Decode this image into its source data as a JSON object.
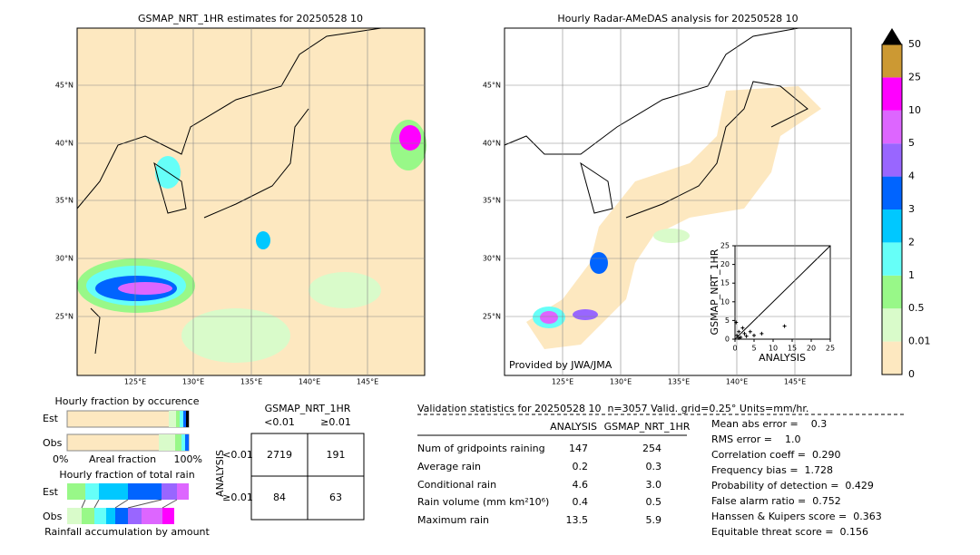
{
  "left_map": {
    "title": "GSMAP_NRT_1HR estimates for 20250528 10",
    "lat_labels": [
      "45°N",
      "40°N",
      "35°N",
      "30°N",
      "25°N"
    ],
    "lon_labels": [
      "125°E",
      "130°E",
      "135°E",
      "140°E",
      "145°E"
    ]
  },
  "right_map": {
    "title": "Hourly Radar-AMeDAS analysis for 20250528 10",
    "lat_labels": [
      "45°N",
      "40°N",
      "35°N",
      "30°N",
      "25°N"
    ],
    "lon_labels": [
      "125°E",
      "130°E",
      "135°E",
      "140°E",
      "145°E"
    ],
    "credit": "Provided by JWA/JMA"
  },
  "scatter": {
    "xlabel": "ANALYSIS",
    "ylabel": "GSMAP_NRT_1HR",
    "xticks": [
      0,
      5,
      10,
      15,
      20,
      25
    ],
    "yticks": [
      0,
      5,
      10,
      15,
      20,
      25
    ],
    "points": [
      [
        0.5,
        1
      ],
      [
        1,
        2
      ],
      [
        1.5,
        0.5
      ],
      [
        2,
        3
      ],
      [
        2.5,
        1.5
      ],
      [
        3,
        0.8
      ],
      [
        4,
        2
      ],
      [
        5,
        1
      ],
      [
        7,
        1.5
      ],
      [
        13,
        3.5
      ],
      [
        0.3,
        4.5
      ],
      [
        1,
        0.3
      ]
    ]
  },
  "colorbar": {
    "ticks": [
      "0",
      "0.01",
      "0.5",
      "1",
      "2",
      "3",
      "4",
      "5",
      "10",
      "25",
      "50"
    ],
    "colors": [
      "#fde8c0",
      "#d9fbca",
      "#98f888",
      "#66fff8",
      "#00c8ff",
      "#0064ff",
      "#9966ff",
      "#dd66ff",
      "#ff00ff",
      "#cc9933"
    ]
  },
  "occurrence": {
    "title": "Hourly fraction by occurence",
    "rows": [
      "Est",
      "Obs"
    ],
    "axis": [
      "0%",
      "Areal fraction",
      "100%"
    ]
  },
  "total_rain": {
    "title": "Hourly fraction of total rain",
    "rows": [
      "Est",
      "Obs"
    ],
    "footer": "Rainfall accumulation by amount"
  },
  "contingency": {
    "title": "GSMAP_NRT_1HR",
    "cols": [
      "<0.01",
      "≥0.01"
    ],
    "ylabel": "ANALYSIS",
    "rows": [
      "<0.01",
      "≥0.01"
    ],
    "cells": [
      [
        "2719",
        "191"
      ],
      [
        "84",
        "63"
      ]
    ]
  },
  "validation": {
    "header": "Validation statistics for 20250528 10  n=3057 Valid. grid=0.25° Units=mm/hr.",
    "columns": [
      "ANALYSIS",
      "GSMAP_NRT_1HR"
    ],
    "rows": [
      {
        "label": "Num of gridpoints raining",
        "values": [
          "147",
          "254"
        ]
      },
      {
        "label": "Average rain",
        "values": [
          "0.2",
          "0.3"
        ]
      },
      {
        "label": "Conditional rain",
        "values": [
          "4.6",
          "3.0"
        ]
      },
      {
        "label": "Rain volume (mm km²10⁶)",
        "values": [
          "0.4",
          "0.5"
        ]
      },
      {
        "label": "Maximum rain",
        "values": [
          "13.5",
          "5.9"
        ]
      }
    ],
    "scores": [
      "Mean abs error =    0.3",
      "RMS error =    1.0",
      "Correlation coeff =  0.290",
      "Frequency bias =  1.728",
      "Probability of detection =  0.429",
      "False alarm ratio =  0.752",
      "Hanssen & Kuipers score =  0.363",
      "Equitable threat score =  0.156"
    ]
  }
}
